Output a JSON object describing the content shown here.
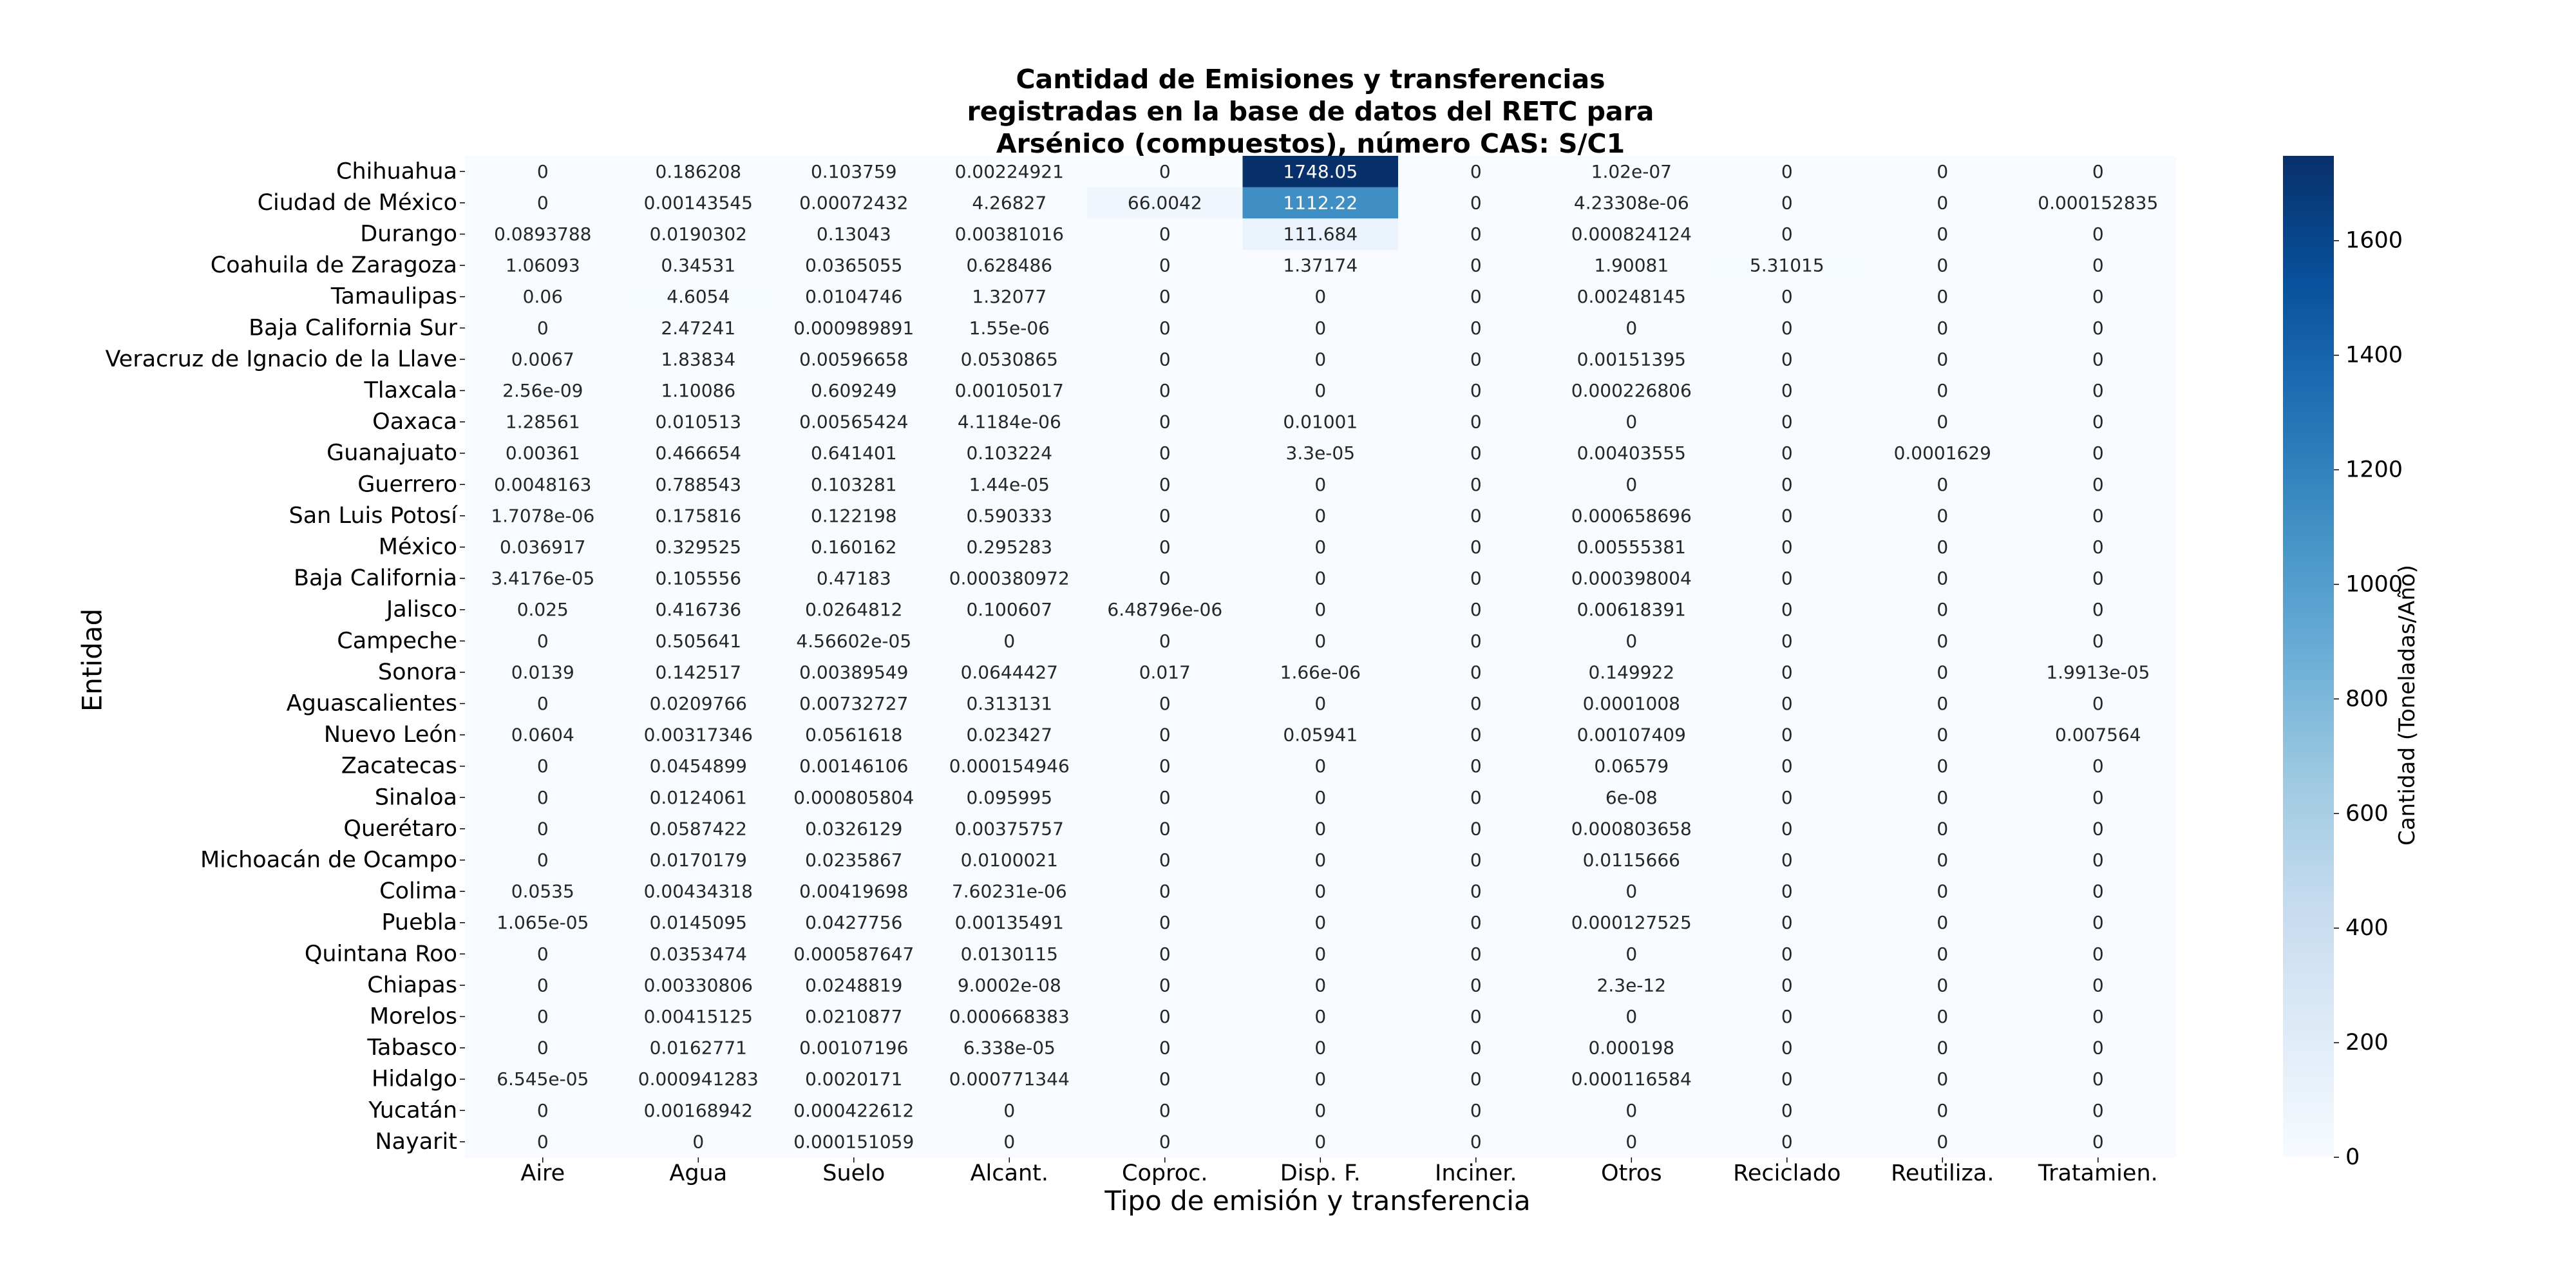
{
  "chart_data": {
    "type": "heatmap",
    "title": "Cantidad de Emisiones y transferencias registradas en la base de datos del RETC para Arsénico (compuestos), número CAS: S/C1",
    "title_lines": [
      "Cantidad de Emisiones y transferencias",
      "registradas en la base de datos del RETC para",
      "Arsénico (compuestos), número CAS: S/C1"
    ],
    "xlabel": "Tipo de emisión y transferencia",
    "ylabel": "Entidad",
    "colorbar_label": "Cantidad (Toneladas/Año)",
    "colormap": "Blues",
    "vmin": 0,
    "vmax": 1748.05,
    "colorbar_ticks": [
      0,
      200,
      400,
      600,
      800,
      1000,
      1200,
      1400,
      1600
    ],
    "columns": [
      "Aire",
      "Agua",
      "Suelo",
      "Alcant.",
      "Coproc.",
      "Disp. F.",
      "Inciner.",
      "Otros",
      "Reciclado",
      "Reutiliza.",
      "Tratamien."
    ],
    "rows": [
      "Chihuahua",
      "Ciudad de México",
      "Durango",
      "Coahuila de Zaragoza",
      "Tamaulipas",
      "Baja California Sur",
      "Veracruz de Ignacio de la Llave",
      "Tlaxcala",
      "Oaxaca",
      "Guanajuato",
      "Guerrero",
      "San Luis Potosí",
      "México",
      "Baja California",
      "Jalisco",
      "Campeche",
      "Sonora",
      "Aguascalientes",
      "Nuevo León",
      "Zacatecas",
      "Sinaloa",
      "Querétaro",
      "Michoacán de Ocampo",
      "Colima",
      "Puebla",
      "Quintana Roo",
      "Chiapas",
      "Morelos",
      "Tabasco",
      "Hidalgo",
      "Yucatán",
      "Nayarit"
    ],
    "labels": [
      [
        "0",
        "0.186208",
        "0.103759",
        "0.00224921",
        "0",
        "1748.05",
        "0",
        "1.02e-07",
        "0",
        "0",
        "0"
      ],
      [
        "0",
        "0.00143545",
        "0.00072432",
        "4.26827",
        "66.0042",
        "1112.22",
        "0",
        "4.23308e-06",
        "0",
        "0",
        "0.000152835"
      ],
      [
        "0.0893788",
        "0.0190302",
        "0.13043",
        "0.00381016",
        "0",
        "111.684",
        "0",
        "0.000824124",
        "0",
        "0",
        "0"
      ],
      [
        "1.06093",
        "0.34531",
        "0.0365055",
        "0.628486",
        "0",
        "1.37174",
        "0",
        "1.90081",
        "5.31015",
        "0",
        "0"
      ],
      [
        "0.06",
        "4.6054",
        "0.0104746",
        "1.32077",
        "0",
        "0",
        "0",
        "0.00248145",
        "0",
        "0",
        "0"
      ],
      [
        "0",
        "2.47241",
        "0.000989891",
        "1.55e-06",
        "0",
        "0",
        "0",
        "0",
        "0",
        "0",
        "0"
      ],
      [
        "0.0067",
        "1.83834",
        "0.00596658",
        "0.0530865",
        "0",
        "0",
        "0",
        "0.00151395",
        "0",
        "0",
        "0"
      ],
      [
        "2.56e-09",
        "1.10086",
        "0.609249",
        "0.00105017",
        "0",
        "0",
        "0",
        "0.000226806",
        "0",
        "0",
        "0"
      ],
      [
        "1.28561",
        "0.010513",
        "0.00565424",
        "4.1184e-06",
        "0",
        "0.01001",
        "0",
        "0",
        "0",
        "0",
        "0"
      ],
      [
        "0.00361",
        "0.466654",
        "0.641401",
        "0.103224",
        "0",
        "3.3e-05",
        "0",
        "0.00403555",
        "0",
        "0.0001629",
        "0"
      ],
      [
        "0.0048163",
        "0.788543",
        "0.103281",
        "1.44e-05",
        "0",
        "0",
        "0",
        "0",
        "0",
        "0",
        "0"
      ],
      [
        "1.7078e-06",
        "0.175816",
        "0.122198",
        "0.590333",
        "0",
        "0",
        "0",
        "0.000658696",
        "0",
        "0",
        "0"
      ],
      [
        "0.036917",
        "0.329525",
        "0.160162",
        "0.295283",
        "0",
        "0",
        "0",
        "0.00555381",
        "0",
        "0",
        "0"
      ],
      [
        "3.4176e-05",
        "0.105556",
        "0.47183",
        "0.000380972",
        "0",
        "0",
        "0",
        "0.000398004",
        "0",
        "0",
        "0"
      ],
      [
        "0.025",
        "0.416736",
        "0.0264812",
        "0.100607",
        "6.48796e-06",
        "0",
        "0",
        "0.00618391",
        "0",
        "0",
        "0"
      ],
      [
        "0",
        "0.505641",
        "4.56602e-05",
        "0",
        "0",
        "0",
        "0",
        "0",
        "0",
        "0",
        "0"
      ],
      [
        "0.0139",
        "0.142517",
        "0.00389549",
        "0.0644427",
        "0.017",
        "1.66e-06",
        "0",
        "0.149922",
        "0",
        "0",
        "1.9913e-05"
      ],
      [
        "0",
        "0.0209766",
        "0.00732727",
        "0.313131",
        "0",
        "0",
        "0",
        "0.0001008",
        "0",
        "0",
        "0"
      ],
      [
        "0.0604",
        "0.00317346",
        "0.0561618",
        "0.023427",
        "0",
        "0.05941",
        "0",
        "0.00107409",
        "0",
        "0",
        "0.007564"
      ],
      [
        "0",
        "0.0454899",
        "0.00146106",
        "0.000154946",
        "0",
        "0",
        "0",
        "0.06579",
        "0",
        "0",
        "0"
      ],
      [
        "0",
        "0.0124061",
        "0.000805804",
        "0.095995",
        "0",
        "0",
        "0",
        "6e-08",
        "0",
        "0",
        "0"
      ],
      [
        "0",
        "0.0587422",
        "0.0326129",
        "0.00375757",
        "0",
        "0",
        "0",
        "0.000803658",
        "0",
        "0",
        "0"
      ],
      [
        "0",
        "0.0170179",
        "0.0235867",
        "0.0100021",
        "0",
        "0",
        "0",
        "0.0115666",
        "0",
        "0",
        "0"
      ],
      [
        "0.0535",
        "0.00434318",
        "0.00419698",
        "7.60231e-06",
        "0",
        "0",
        "0",
        "0",
        "0",
        "0",
        "0"
      ],
      [
        "1.065e-05",
        "0.0145095",
        "0.0427756",
        "0.00135491",
        "0",
        "0",
        "0",
        "0.000127525",
        "0",
        "0",
        "0"
      ],
      [
        "0",
        "0.0353474",
        "0.000587647",
        "0.0130115",
        "0",
        "0",
        "0",
        "0",
        "0",
        "0",
        "0"
      ],
      [
        "0",
        "0.00330806",
        "0.0248819",
        "9.0002e-08",
        "0",
        "0",
        "0",
        "2.3e-12",
        "0",
        "0",
        "0"
      ],
      [
        "0",
        "0.00415125",
        "0.0210877",
        "0.000668383",
        "0",
        "0",
        "0",
        "0",
        "0",
        "0",
        "0"
      ],
      [
        "0",
        "0.0162771",
        "0.00107196",
        "6.338e-05",
        "0",
        "0",
        "0",
        "0.000198",
        "0",
        "0",
        "0"
      ],
      [
        "6.545e-05",
        "0.000941283",
        "0.0020171",
        "0.000771344",
        "0",
        "0",
        "0",
        "0.000116584",
        "0",
        "0",
        "0"
      ],
      [
        "0",
        "0.00168942",
        "0.000422612",
        "0",
        "0",
        "0",
        "0",
        "0",
        "0",
        "0",
        "0"
      ],
      [
        "0",
        "0",
        "0.000151059",
        "0",
        "0",
        "0",
        "0",
        "0",
        "0",
        "0",
        "0"
      ]
    ]
  }
}
